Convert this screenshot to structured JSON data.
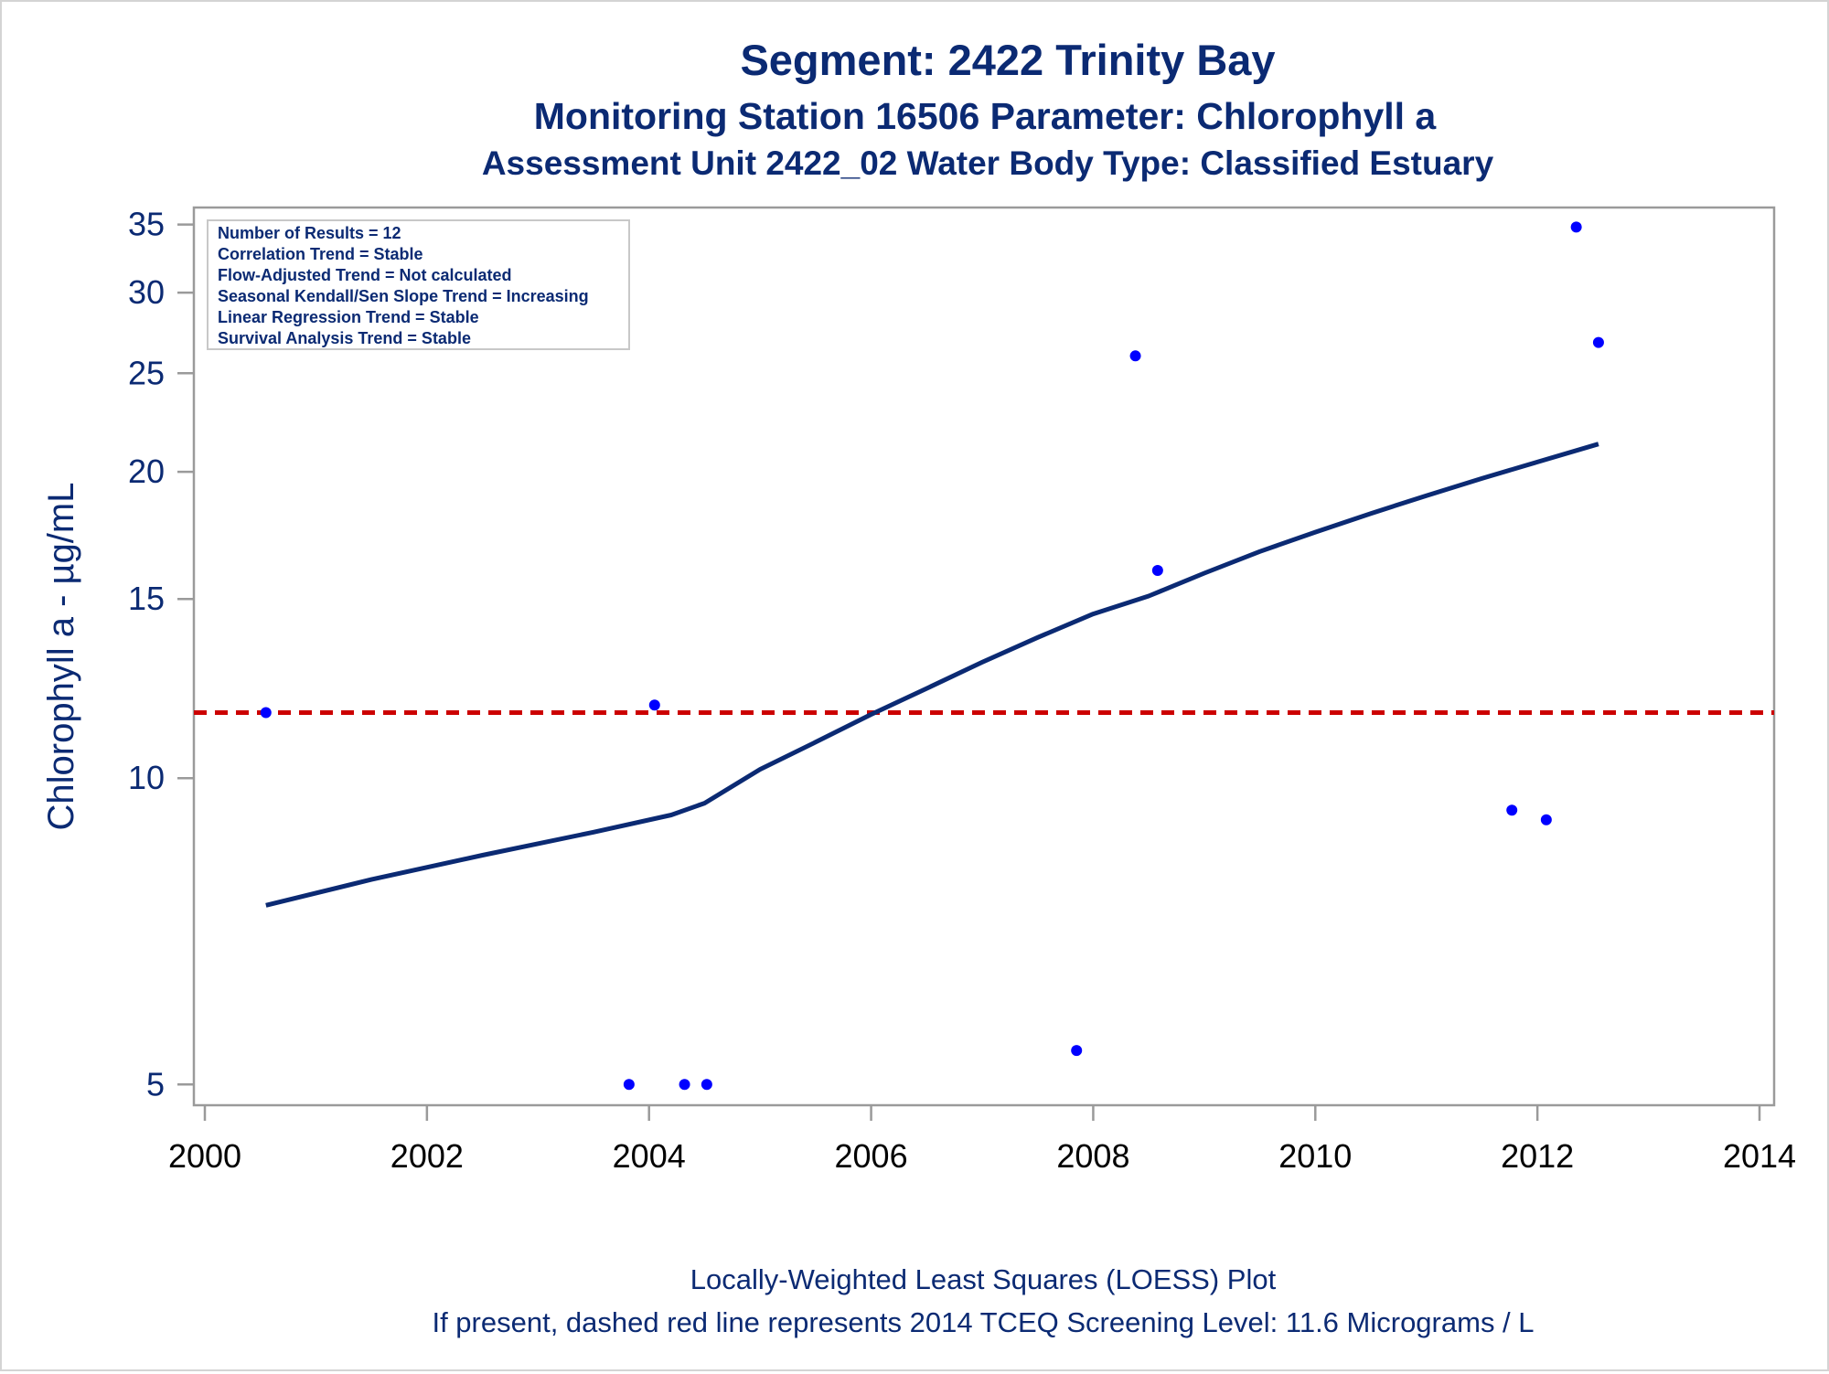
{
  "titles": {
    "line1": "Segment: 2422  Trinity Bay",
    "line2": "Monitoring Station 16506 Parameter: Chlorophyll a",
    "line3": "Assessment Unit 2422_02   Water Body Type: Classified Estuary"
  },
  "stats_box": {
    "lines": [
      "Number of Results = 12",
      "Correlation Trend = Stable",
      "Flow-Adjusted Trend = Not calculated",
      "Seasonal Kendall/Sen Slope Trend = Increasing",
      "Linear Regression Trend = Stable",
      "Survival Analysis Trend = Stable"
    ]
  },
  "footnotes": {
    "line1": "Locally-Weighted Least Squares (LOESS) Plot",
    "line2": "If present, dashed red line represents 2014 TCEQ Screening Level: 11.6 Micrograms / L"
  },
  "colors": {
    "text": "#0b2a73",
    "points": "#0000ff",
    "loess": "#0b2a73",
    "screening": "#cc0000",
    "frame": "#9a9a9a"
  },
  "chart_data": {
    "type": "scatter",
    "xlabel": "",
    "ylabel": "Chlorophyll a -  µg/mL",
    "yscale": "log",
    "xlim": [
      2000,
      2014
    ],
    "ylim": [
      4.85,
      36
    ],
    "x_ticks": [
      2000,
      2002,
      2004,
      2006,
      2008,
      2010,
      2012,
      2014
    ],
    "y_ticks": [
      5,
      10,
      15,
      20,
      25,
      30,
      35
    ],
    "grid": false,
    "points": [
      {
        "x": 2000.55,
        "y": 11.6
      },
      {
        "x": 2003.82,
        "y": 5.0
      },
      {
        "x": 2004.05,
        "y": 11.8
      },
      {
        "x": 2004.32,
        "y": 5.0
      },
      {
        "x": 2004.52,
        "y": 5.0
      },
      {
        "x": 2007.85,
        "y": 5.4
      },
      {
        "x": 2008.38,
        "y": 26.0
      },
      {
        "x": 2008.58,
        "y": 16.0
      },
      {
        "x": 2011.77,
        "y": 9.3
      },
      {
        "x": 2012.08,
        "y": 9.1
      },
      {
        "x": 2012.35,
        "y": 34.8
      },
      {
        "x": 2012.55,
        "y": 26.8
      }
    ],
    "loess_line": [
      {
        "x": 2000.55,
        "y": 7.5
      },
      {
        "x": 2001.5,
        "y": 7.95
      },
      {
        "x": 2002.5,
        "y": 8.4
      },
      {
        "x": 2003.5,
        "y": 8.85
      },
      {
        "x": 2004.2,
        "y": 9.2
      },
      {
        "x": 2004.5,
        "y": 9.45
      },
      {
        "x": 2005.0,
        "y": 10.2
      },
      {
        "x": 2005.5,
        "y": 10.85
      },
      {
        "x": 2006.0,
        "y": 11.55
      },
      {
        "x": 2006.5,
        "y": 12.25
      },
      {
        "x": 2007.0,
        "y": 13.0
      },
      {
        "x": 2007.5,
        "y": 13.75
      },
      {
        "x": 2008.0,
        "y": 14.5
      },
      {
        "x": 2008.5,
        "y": 15.1
      },
      {
        "x": 2009.0,
        "y": 15.9
      },
      {
        "x": 2009.5,
        "y": 16.7
      },
      {
        "x": 2010.0,
        "y": 17.45
      },
      {
        "x": 2010.5,
        "y": 18.2
      },
      {
        "x": 2011.0,
        "y": 18.95
      },
      {
        "x": 2011.5,
        "y": 19.7
      },
      {
        "x": 2012.0,
        "y": 20.45
      },
      {
        "x": 2012.55,
        "y": 21.3
      }
    ],
    "screening_level": 11.6
  }
}
